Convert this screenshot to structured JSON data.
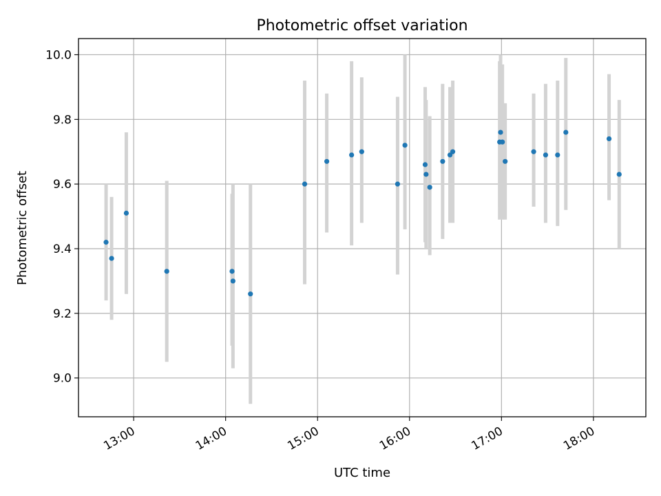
{
  "chart_data": {
    "type": "scatter",
    "title": "Photometric offset variation",
    "xlabel": "UTC time",
    "ylabel": "Photometric offset",
    "x_unit": "hour",
    "xlim": [
      12.4,
      18.57
    ],
    "ylim": [
      8.88,
      10.05
    ],
    "x_ticks": [
      {
        "value": 13,
        "label": "13:00"
      },
      {
        "value": 14,
        "label": "14:00"
      },
      {
        "value": 15,
        "label": "15:00"
      },
      {
        "value": 16,
        "label": "16:00"
      },
      {
        "value": 17,
        "label": "17:00"
      },
      {
        "value": 18,
        "label": "18:00"
      }
    ],
    "y_ticks": [
      {
        "value": 9.0,
        "label": "9.0"
      },
      {
        "value": 9.2,
        "label": "9.2"
      },
      {
        "value": 9.4,
        "label": "9.4"
      },
      {
        "value": 9.6,
        "label": "9.6"
      },
      {
        "value": 9.8,
        "label": "9.8"
      },
      {
        "value": 10.0,
        "label": "10.0"
      }
    ],
    "grid": true,
    "marker_color": "#1f77b4",
    "errorbar_color": "#d3d3d3",
    "points": [
      {
        "x": 12.7,
        "y": 9.42,
        "ylo": 9.24,
        "yhi": 9.6
      },
      {
        "x": 12.76,
        "y": 9.37,
        "ylo": 9.18,
        "yhi": 9.56
      },
      {
        "x": 12.92,
        "y": 9.51,
        "ylo": 9.26,
        "yhi": 9.76
      },
      {
        "x": 13.36,
        "y": 9.33,
        "ylo": 9.05,
        "yhi": 9.61
      },
      {
        "x": 14.07,
        "y": 9.33,
        "ylo": 9.1,
        "yhi": 9.57
      },
      {
        "x": 14.08,
        "y": 9.3,
        "ylo": 9.03,
        "yhi": 9.6
      },
      {
        "x": 14.27,
        "y": 9.26,
        "ylo": 8.92,
        "yhi": 9.6
      },
      {
        "x": 14.86,
        "y": 9.6,
        "ylo": 9.29,
        "yhi": 9.92
      },
      {
        "x": 15.1,
        "y": 9.67,
        "ylo": 9.45,
        "yhi": 9.88
      },
      {
        "x": 15.37,
        "y": 9.69,
        "ylo": 9.41,
        "yhi": 9.98
      },
      {
        "x": 15.48,
        "y": 9.7,
        "ylo": 9.48,
        "yhi": 9.93
      },
      {
        "x": 15.87,
        "y": 9.6,
        "ylo": 9.32,
        "yhi": 9.87
      },
      {
        "x": 15.95,
        "y": 9.72,
        "ylo": 9.46,
        "yhi": 10.0
      },
      {
        "x": 16.17,
        "y": 9.66,
        "ylo": 9.42,
        "yhi": 9.9
      },
      {
        "x": 16.18,
        "y": 9.63,
        "ylo": 9.4,
        "yhi": 9.86
      },
      {
        "x": 16.22,
        "y": 9.59,
        "ylo": 9.38,
        "yhi": 9.81
      },
      {
        "x": 16.36,
        "y": 9.67,
        "ylo": 9.43,
        "yhi": 9.91
      },
      {
        "x": 16.44,
        "y": 9.69,
        "ylo": 9.48,
        "yhi": 9.9
      },
      {
        "x": 16.47,
        "y": 9.7,
        "ylo": 9.48,
        "yhi": 9.92
      },
      {
        "x": 16.98,
        "y": 9.73,
        "ylo": 9.49,
        "yhi": 9.98
      },
      {
        "x": 16.99,
        "y": 9.76,
        "ylo": 9.53,
        "yhi": 10.0
      },
      {
        "x": 17.01,
        "y": 9.73,
        "ylo": 9.49,
        "yhi": 9.97
      },
      {
        "x": 17.04,
        "y": 9.67,
        "ylo": 9.49,
        "yhi": 9.85
      },
      {
        "x": 17.35,
        "y": 9.7,
        "ylo": 9.53,
        "yhi": 9.88
      },
      {
        "x": 17.48,
        "y": 9.69,
        "ylo": 9.48,
        "yhi": 9.91
      },
      {
        "x": 17.61,
        "y": 9.69,
        "ylo": 9.47,
        "yhi": 9.92
      },
      {
        "x": 17.7,
        "y": 9.76,
        "ylo": 9.52,
        "yhi": 9.99
      },
      {
        "x": 18.17,
        "y": 9.74,
        "ylo": 9.55,
        "yhi": 9.94
      },
      {
        "x": 18.28,
        "y": 9.63,
        "ylo": 9.4,
        "yhi": 9.86
      }
    ]
  }
}
